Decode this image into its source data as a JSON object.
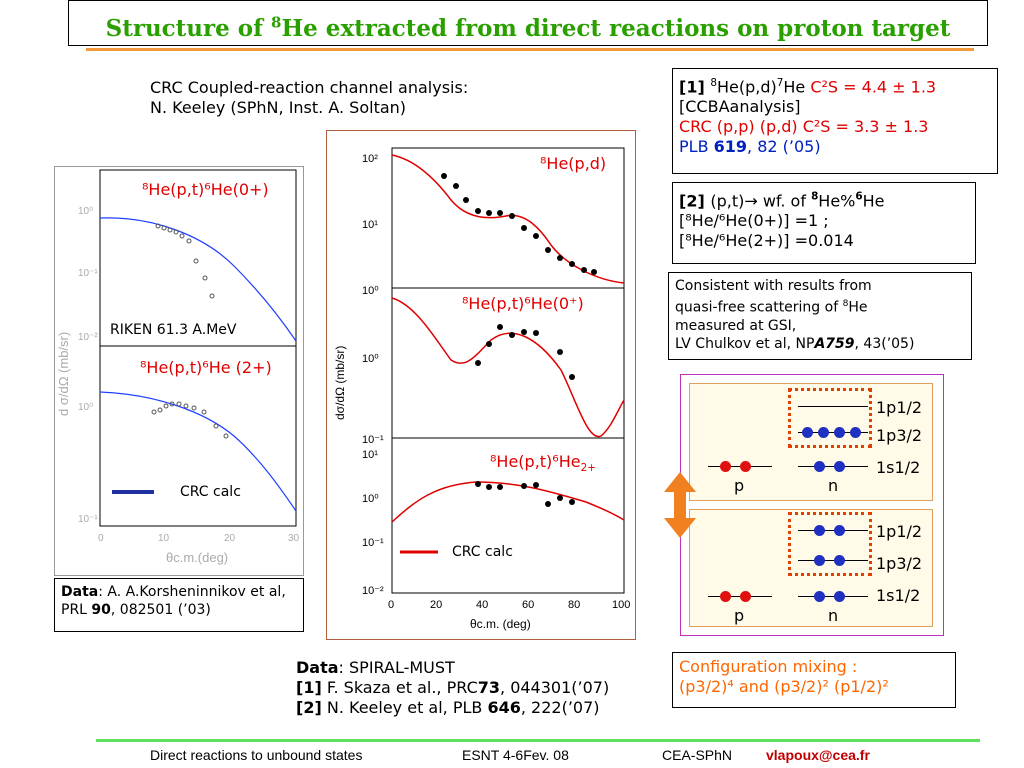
{
  "title": {
    "pre": "Structure of ",
    "mass": "8",
    "post": "He extracted from direct reactions on proton target"
  },
  "crc_note": {
    "line1": "CRC Coupled-reaction channel analysis:",
    "line2": "N. Keeley (SPhN, Inst. A. Soltan)"
  },
  "box1": {
    "ref": "[1] ",
    "m1": "8",
    "t1": "He(p,d)",
    "m2": "7",
    "t2": "He ",
    "c2s_label": "C²S = 4.4 ± 1.3",
    "line2": "[CCBAanalysis]",
    "line3_red": "CRC (p,p) (p,d) C²S = 3.3 ± 1.3",
    "line4_a": "PLB ",
    "line4_b": "619",
    "line4_c": ", 82 (’05)"
  },
  "box2": {
    "ref": "[2] ",
    "l1a": "(p,t)→ wf. of ",
    "l1m": "8",
    "l1b": "He%",
    "l1m2": "6",
    "l1c": "He",
    "l2": "[⁸He/⁶He(0+)] =1 ;",
    "l3": "[⁸He/⁶He(2+)] =0.014"
  },
  "box3": {
    "l1": "Consistent with results from",
    "l2a": "quasi-free scattering of ",
    "l2m": "8",
    "l2b": "He",
    "l3": " measured at GSI,",
    "l4a": "LV Chulkov et al, NP",
    "l4b": "A759",
    "l4c": ", 43(’05)"
  },
  "riken_label": "RIKEN 61.3 A.MeV",
  "left_panels": {
    "top_label": "⁸He(p,t)⁶He(0+)",
    "bottom_label": "⁸He(p,t)⁶He (2+)",
    "legend": "CRC calc",
    "ylabel": "d σ/dΩ (mb/sr)",
    "xlabel": "θc.m.(deg)",
    "xticks": [
      "0",
      "10",
      "20",
      "30"
    ],
    "yticks_top": [
      "10⁰",
      "10⁻¹",
      "10⁻²"
    ],
    "yticks_bottom": [
      "10⁰",
      "10⁻¹"
    ]
  },
  "data_box": {
    "bold": "Data",
    "text": ": A. A.Korsheninnikov et al, PRL ",
    "vol": "90",
    "tail": ", 082501 (’03)"
  },
  "center_panels": {
    "p1": "⁸He(p,d)",
    "p2": "⁸He(p,t)⁶He(0⁺)",
    "p3a": "⁸He(p,t)⁶He",
    "p3b": "2+",
    "legend": "CRC calc",
    "ylabel": "dσ/dΩ (mb/sr)",
    "xlabel": "θc.m. (deg)",
    "xticks": [
      "0",
      "20",
      "40",
      "60",
      "80",
      "100"
    ],
    "y1": [
      "10²",
      "10¹",
      "10⁰"
    ],
    "y2": [
      "10⁰",
      "10⁻¹"
    ],
    "y3": [
      "10¹",
      "10⁰",
      "10⁻¹",
      "10⁻²"
    ]
  },
  "bottom_refs": {
    "l1a": "Data",
    "l1b": ": SPIRAL-MUST",
    "l2a": "[1]",
    "l2b": " F. Skaza et al., PRC",
    "l2c": "73",
    "l2d": ", 044301(’07)",
    "l3a": "[2]",
    "l3b": " N. Keeley et al, PLB ",
    "l3c": "646",
    "l3d": ", 222(’07)"
  },
  "config": {
    "l1": "Configuration mixing :",
    "l2": "(p3/2)⁴  and (p3/2)² (p1/2)²"
  },
  "shells": {
    "p12": "1p1/2",
    "p32": "1p3/2",
    "s12": "1s1/2",
    "p": "p",
    "n": "n"
  },
  "footer": {
    "f1": "Direct reactions to unbound states",
    "f2": "ESNT 4-6Fev. 08",
    "f3": "CEA-SPhN",
    "f4": "vlapoux@cea.fr"
  }
}
